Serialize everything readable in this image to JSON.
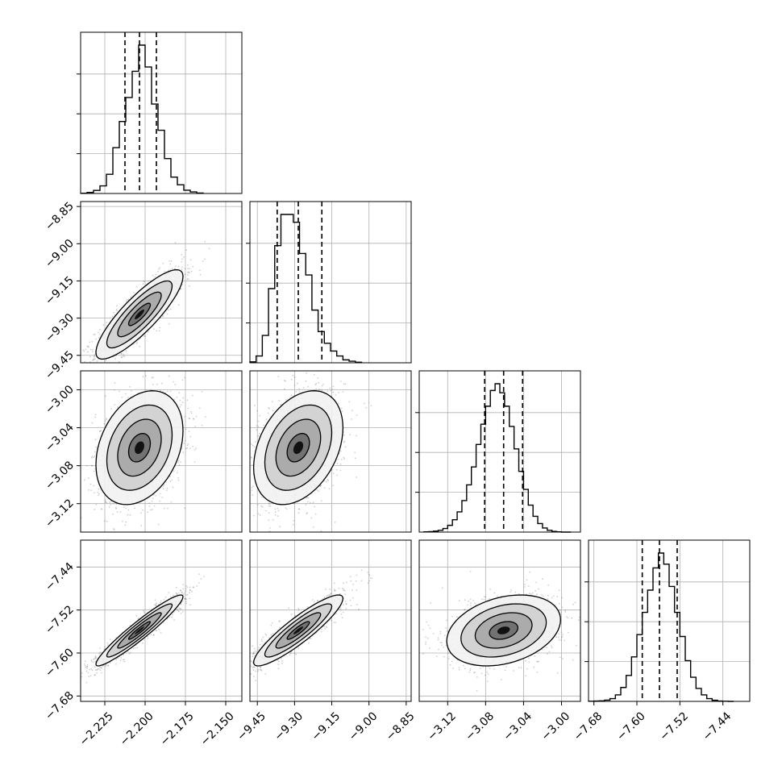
{
  "chart_data": {
    "type": "corner",
    "grid": true,
    "parameters": [
      {
        "range": [
          -2.24,
          -2.14
        ],
        "ticks": [
          -2.225,
          -2.2,
          -2.175,
          -2.15
        ],
        "tick_labels": [
          "−2.225",
          "−2.200",
          "−2.175",
          "−2.150"
        ],
        "quantiles": [
          -2.2125,
          -2.2035,
          -2.193
        ],
        "hist_bins": [
          -2.24,
          -2.236,
          -2.232,
          -2.228,
          -2.224,
          -2.22,
          -2.216,
          -2.212,
          -2.208,
          -2.204,
          -2.2,
          -2.196,
          -2.192,
          -2.188,
          -2.184,
          -2.18,
          -2.176,
          -2.172,
          -2.168,
          -2.164
        ],
        "hist_counts": [
          1,
          5,
          14,
          35,
          88,
          210,
          330,
          440,
          560,
          680,
          580,
          410,
          290,
          160,
          75,
          40,
          15,
          7,
          2
        ]
      },
      {
        "range": [
          -9.48,
          -8.83
        ],
        "ticks": [
          -9.45,
          -9.3,
          -9.15,
          -9.0,
          -8.85
        ],
        "tick_labels": [
          "−9.45",
          "−9.30",
          "−9.15",
          "−9.00",
          "−8.85"
        ],
        "quantiles": [
          -9.37,
          -9.285,
          -9.19
        ],
        "hist_bins": [
          -9.48,
          -9.455,
          -9.43,
          -9.405,
          -9.38,
          -9.355,
          -9.33,
          -9.305,
          -9.28,
          -9.255,
          -9.23,
          -9.205,
          -9.18,
          -9.155,
          -9.13,
          -9.105,
          -9.08,
          -9.055,
          -9.03
        ],
        "hist_counts": [
          5,
          35,
          140,
          380,
          600,
          760,
          760,
          720,
          560,
          450,
          270,
          160,
          100,
          60,
          35,
          15,
          8,
          3
        ]
      },
      {
        "range": [
          -3.15,
          -2.98
        ],
        "ticks": [
          -3.12,
          -3.08,
          -3.04,
          -3.0
        ],
        "tick_labels": [
          "−3.12",
          "−3.08",
          "−3.04",
          "−3.00"
        ],
        "quantiles": [
          -3.081,
          -3.061,
          -3.041
        ],
        "hist_bins": [
          -3.145,
          -3.14,
          -3.135,
          -3.13,
          -3.125,
          -3.12,
          -3.115,
          -3.11,
          -3.105,
          -3.1,
          -3.095,
          -3.09,
          -3.085,
          -3.08,
          -3.075,
          -3.07,
          -3.065,
          -3.06,
          -3.055,
          -3.05,
          -3.045,
          -3.04,
          -3.035,
          -3.03,
          -3.025,
          -3.02,
          -3.015,
          -3.01,
          -3.005,
          -3.0,
          -2.995,
          -2.99
        ],
        "hist_counts": [
          1,
          2,
          4,
          8,
          16,
          30,
          55,
          90,
          140,
          210,
          290,
          390,
          480,
          560,
          630,
          660,
          620,
          560,
          470,
          370,
          270,
          190,
          120,
          70,
          38,
          18,
          8,
          3,
          1,
          0,
          0
        ]
      },
      {
        "range": [
          -7.69,
          -7.39
        ],
        "ticks": [
          -7.68,
          -7.6,
          -7.52,
          -7.44
        ],
        "tick_labels": [
          "−7.68",
          "−7.60",
          "−7.52",
          "−7.44"
        ],
        "quantiles": [
          -7.59,
          -7.558,
          -7.525
        ],
        "hist_bins": [
          -7.69,
          -7.68,
          -7.67,
          -7.66,
          -7.65,
          -7.64,
          -7.63,
          -7.62,
          -7.61,
          -7.6,
          -7.59,
          -7.58,
          -7.57,
          -7.56,
          -7.55,
          -7.54,
          -7.53,
          -7.52,
          -7.51,
          -7.5,
          -7.49,
          -7.48,
          -7.47,
          -7.46,
          -7.45,
          -7.44,
          -7.43,
          -7.42
        ],
        "hist_counts": [
          1,
          2,
          3,
          7,
          15,
          35,
          75,
          140,
          240,
          360,
          480,
          600,
          720,
          800,
          740,
          620,
          480,
          350,
          220,
          130,
          70,
          35,
          15,
          6,
          2,
          1,
          0
        ]
      }
    ],
    "pairs": [
      {
        "x": 0,
        "y": 1,
        "mean": [
          -2.2035,
          -9.285
        ],
        "sd": [
          0.0135,
          0.09
        ],
        "corr": 0.85
      },
      {
        "x": 0,
        "y": 2,
        "mean": [
          -2.2035,
          -3.061
        ],
        "sd": [
          0.0135,
          0.03
        ],
        "corr": 0.3
      },
      {
        "x": 1,
        "y": 2,
        "mean": [
          -9.285,
          -3.061
        ],
        "sd": [
          0.09,
          0.03
        ],
        "corr": 0.35
      },
      {
        "x": 0,
        "y": 3,
        "mean": [
          -2.2035,
          -7.558
        ],
        "sd": [
          0.0135,
          0.033
        ],
        "corr": 0.95
      },
      {
        "x": 1,
        "y": 3,
        "mean": [
          -9.285,
          -7.558
        ],
        "sd": [
          0.09,
          0.033
        ],
        "corr": 0.9
      },
      {
        "x": 2,
        "y": 3,
        "mean": [
          -3.061,
          -7.558
        ],
        "sd": [
          0.03,
          0.033
        ],
        "corr": 0.3
      }
    ],
    "contour_levels_sigma": [
      0.5,
      1.0,
      1.5,
      2.0
    ]
  }
}
